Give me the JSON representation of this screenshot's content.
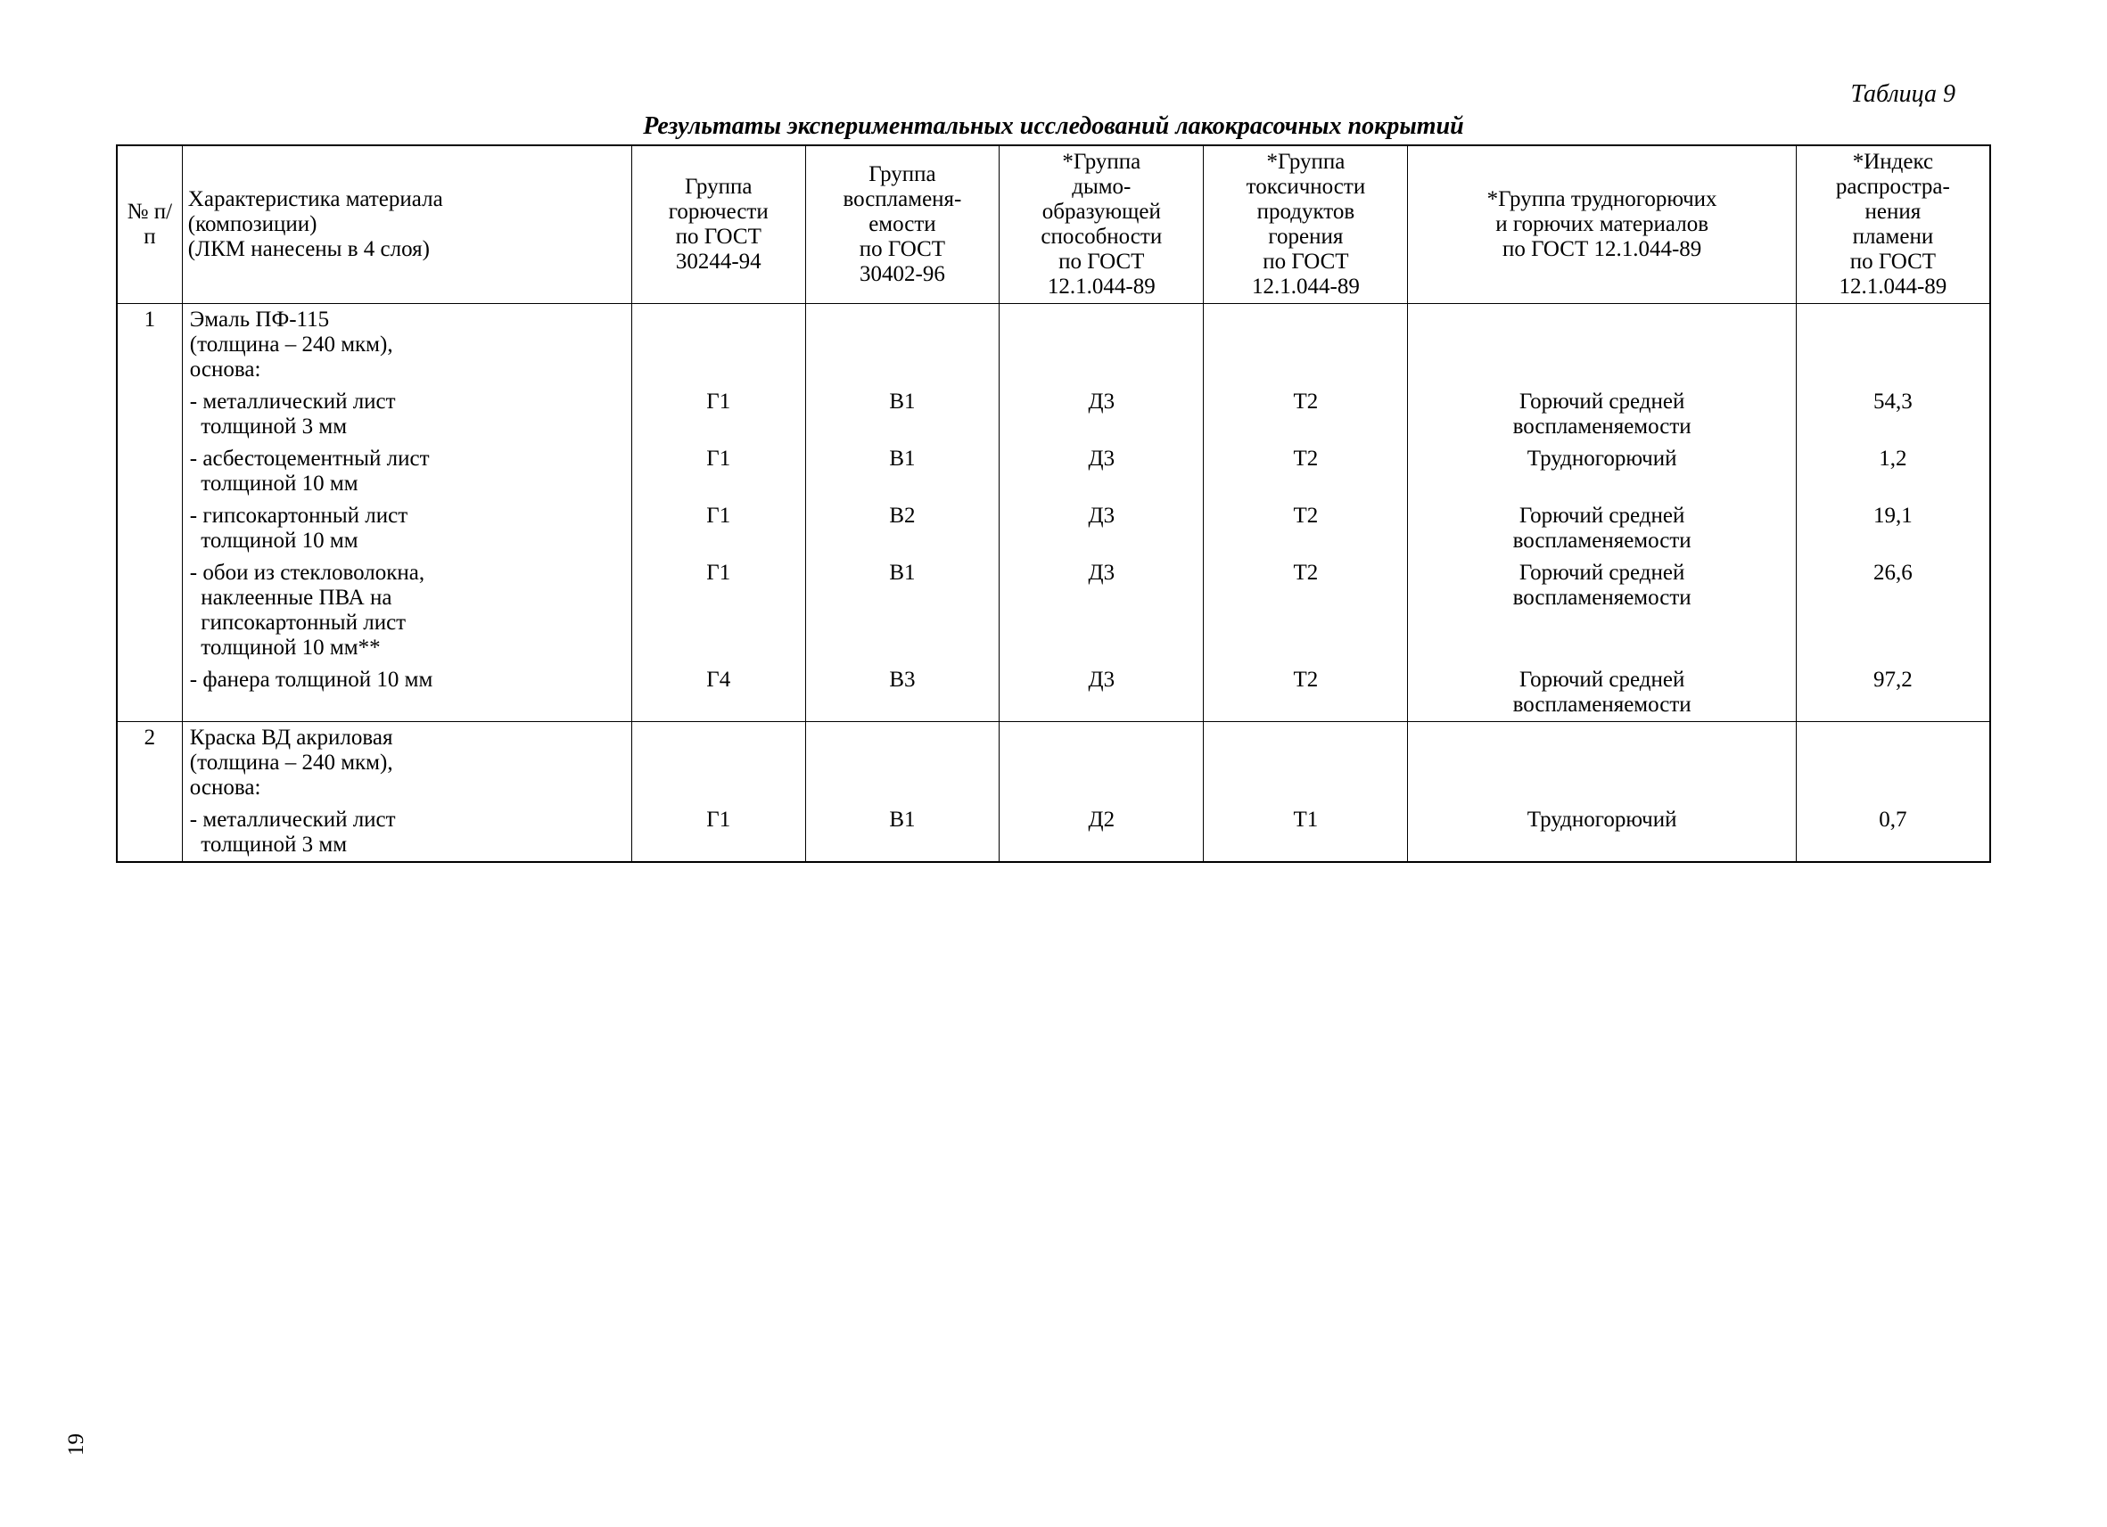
{
  "page": {
    "table_label": "Таблица 9",
    "caption": "Результаты экспериментальных исследований лакокрасочных покрытий",
    "page_number": "19"
  },
  "columns": {
    "num": "№ п/п",
    "desc_l1": "Характеристика материала",
    "desc_l2": "(композиции)",
    "desc_l3": "(ЛКМ нанесены в 4 слоя)",
    "g_l1": "Группа",
    "g_l2": "горючести",
    "g_l3": "по ГОСТ",
    "g_l4": "30244-94",
    "v_l1": "Группа",
    "v_l2": "воспламеня-",
    "v_l3": "емости",
    "v_l4": "по ГОСТ",
    "v_l5": "30402-96",
    "d_l1": "*Группа",
    "d_l2": "дымо-",
    "d_l3": "образующей",
    "d_l4": "способности",
    "d_l5": "по ГОСТ",
    "d_l6": "12.1.044-89",
    "t_l1": "*Группа",
    "t_l2": "токсичности",
    "t_l3": "продуктов",
    "t_l4": "горения",
    "t_l5": "по ГОСТ",
    "t_l6": "12.1.044-89",
    "comb_l1": "*Группа трудногорючих",
    "comb_l2": "и горючих материалов",
    "comb_l3": "по ГОСТ 12.1.044-89",
    "idx_l1": "*Индекс",
    "idx_l2": "распростра-",
    "idx_l3": "нения",
    "idx_l4": "пламени",
    "idx_l5": "по ГОСТ",
    "idx_l6": "12.1.044-89"
  },
  "row1": {
    "num": "1",
    "head_l1": "Эмаль ПФ-115",
    "head_l2": "(толщина – 240 мкм),",
    "head_l3": "основа:",
    "sub1_l1": "- металлический лист",
    "sub1_l2": "  толщиной 3 мм",
    "sub1_g": "Г1",
    "sub1_v": "В1",
    "sub1_d": "Д3",
    "sub1_t": "Т2",
    "sub1_comb_l1": "Горючий средней",
    "sub1_comb_l2": "воспламеняемости",
    "sub1_idx": "54,3",
    "sub2_l1": "- асбестоцементный лист",
    "sub2_l2": "  толщиной 10 мм",
    "sub2_g": "Г1",
    "sub2_v": "В1",
    "sub2_d": "Д3",
    "sub2_t": "Т2",
    "sub2_comb": "Трудногорючий",
    "sub2_idx": "1,2",
    "sub3_l1": "- гипсокартонный лист",
    "sub3_l2": "  толщиной 10 мм",
    "sub3_g": "Г1",
    "sub3_v": "В2",
    "sub3_d": "Д3",
    "sub3_t": "Т2",
    "sub3_comb_l1": "Горючий средней",
    "sub3_comb_l2": "воспламеняемости",
    "sub3_idx": "19,1",
    "sub4_l1": "- обои из стекловолокна,",
    "sub4_l2": "  наклеенные ПВА на",
    "sub4_l3": "  гипсокартонный лист",
    "sub4_l4": "  толщиной 10 мм**",
    "sub4_g": "Г1",
    "sub4_v": "В1",
    "sub4_d": "Д3",
    "sub4_t": "Т2",
    "sub4_comb_l1": "Горючий средней",
    "sub4_comb_l2": "воспламеняемости",
    "sub4_idx": "26,6",
    "sub5_l1": "- фанера толщиной 10 мм",
    "sub5_g": "Г4",
    "sub5_v": "В3",
    "sub5_d": "Д3",
    "sub5_t": "Т2",
    "sub5_comb_l1": "Горючий средней",
    "sub5_comb_l2": "воспламеняемости",
    "sub5_idx": "97,2"
  },
  "row2": {
    "num": "2",
    "head_l1": "Краска ВД акриловая",
    "head_l2": "(толщина – 240 мкм),",
    "head_l3": "основа:",
    "sub1_l1": "- металлический лист",
    "sub1_l2": "  толщиной 3 мм",
    "sub1_g": "Г1",
    "sub1_v": "В1",
    "sub1_d": "Д2",
    "sub1_t": "Т1",
    "sub1_comb": "Трудногорючий",
    "sub1_idx": "0,7"
  },
  "style": {
    "font_family": "Times New Roman",
    "background_color": "#ffffff",
    "text_color": "#000000",
    "border_color": "#000000",
    "header_fontsize": 25,
    "caption_fontsize": 28,
    "column_widths_pct": [
      3.2,
      22,
      8.5,
      9.5,
      10,
      10,
      19,
      9.5
    ]
  }
}
